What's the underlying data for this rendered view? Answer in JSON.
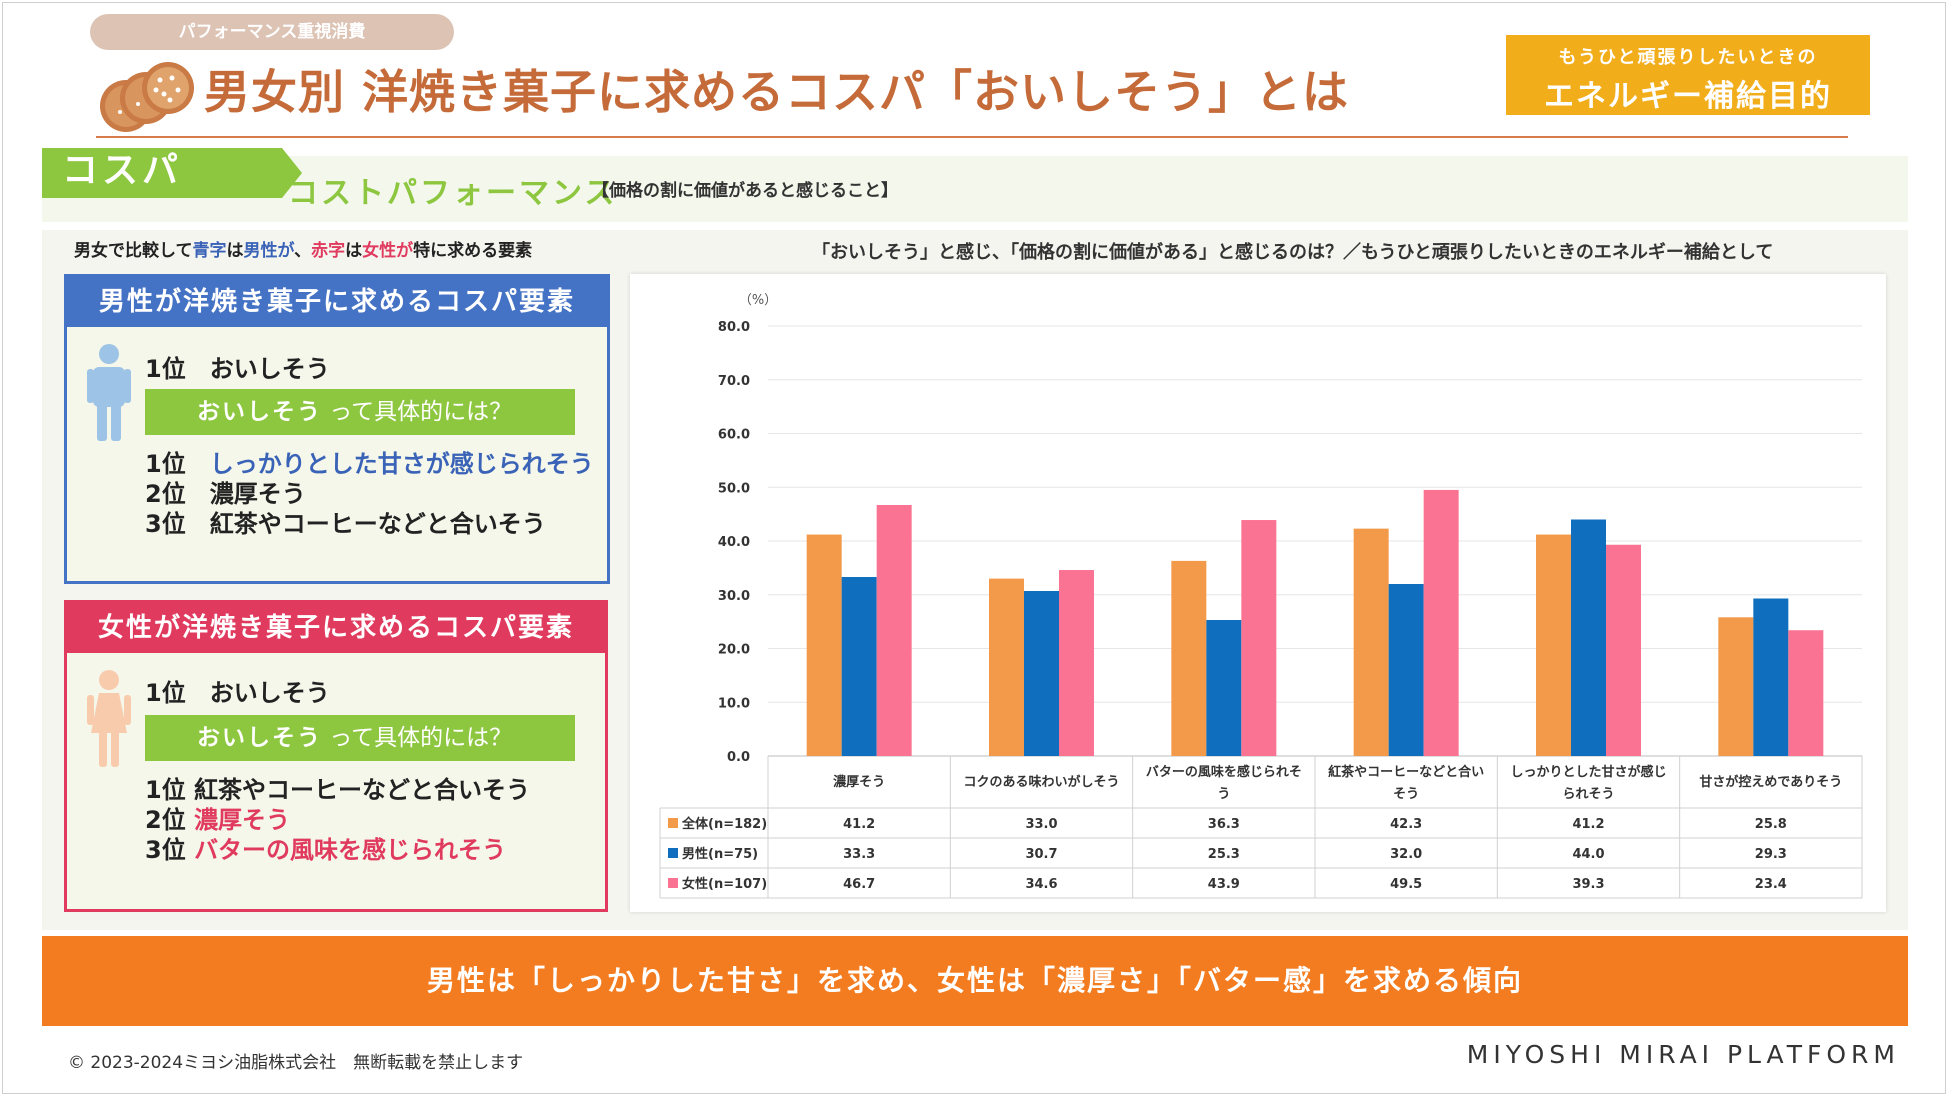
{
  "header": {
    "category": "パフォーマンス重視消費",
    "title": "男女別 洋焼き菓子に求めるコスパ「おいしそう」とは",
    "purpose_line1": "もうひと頑張りしたいときの",
    "purpose_line2": "エネルギー補給目的"
  },
  "cospa": {
    "tag": "コスパ",
    "subtitle": "コストパフォーマンス",
    "definition": "【価格の割に価値があると感じること】"
  },
  "note": {
    "p1": "男女で比較して",
    "blue": "青字",
    "p2": "は",
    "men": "男性が",
    "p3": "、",
    "red": "赤字",
    "p4": "は",
    "women": "女性が",
    "p5": "特に求める要素"
  },
  "chart_caption": "「おいしそう」と感じ、「価格の割に価値がある」と感じるのは？／もうひと頑張りしたいときのエネルギー補給として",
  "men_panel": {
    "heading": "男性が洋焼き菓子に求めるコスパ要素",
    "rank1": "1位　おいしそう",
    "detail_strong": "おいしそう",
    "detail_rest": " って具体的には？",
    "r1_prefix": "1位　",
    "r1_text": "しっかりとした甘さが感じられそう",
    "r2": "2位　濃厚そう",
    "r3": "3位　紅茶やコーヒーなどと合いそう"
  },
  "women_panel": {
    "heading": "女性が洋焼き菓子に求めるコスパ要素",
    "rank1": "1位　おいしそう",
    "detail_strong": "おいしそう",
    "detail_rest": " って具体的には？",
    "r1": "1位 紅茶やコーヒーなどと合いそう",
    "r2_prefix": "2位 ",
    "r2_text": "濃厚そう",
    "r3_prefix": "3位 ",
    "r3_text": "バターの風味を感じられそう"
  },
  "chart_data": {
    "type": "bar",
    "unit_label": "（%）",
    "ylim": [
      0,
      80
    ],
    "yticks": [
      "80.0",
      "70.0",
      "60.0",
      "50.0",
      "40.0",
      "30.0",
      "20.0",
      "10.0",
      "0.0"
    ],
    "categories": [
      [
        "濃厚そう"
      ],
      [
        "コクのある味わいがしそう"
      ],
      [
        "バターの風味を感じられそ",
        "う"
      ],
      [
        "紅茶やコーヒーなどと合い",
        "そう"
      ],
      [
        "しっかりとした甘さが感じ",
        "られそう"
      ],
      [
        "甘さが控えめでありそう"
      ]
    ],
    "series": [
      {
        "name": "全体(n=182)",
        "color": "#f39a4a",
        "values": [
          41.2,
          33.0,
          36.3,
          42.3,
          41.2,
          25.8
        ]
      },
      {
        "name": "男性(n=75)",
        "color": "#0f6fbe",
        "values": [
          33.3,
          30.7,
          25.3,
          32.0,
          44.0,
          29.3
        ]
      },
      {
        "name": "女性(n=107)",
        "color": "#fb7393",
        "values": [
          46.7,
          34.6,
          43.9,
          49.5,
          39.3,
          23.4
        ]
      }
    ]
  },
  "conclusion": "男性は「しっかりした甘さ」を求め、女性は「濃厚さ」「バター感」を求める傾向",
  "footer": {
    "copyright": "© 2023-2024ミヨシ油脂株式会社　無断転載を禁止します",
    "brand": "MIYOSHI MIRAI PLATFORM"
  }
}
